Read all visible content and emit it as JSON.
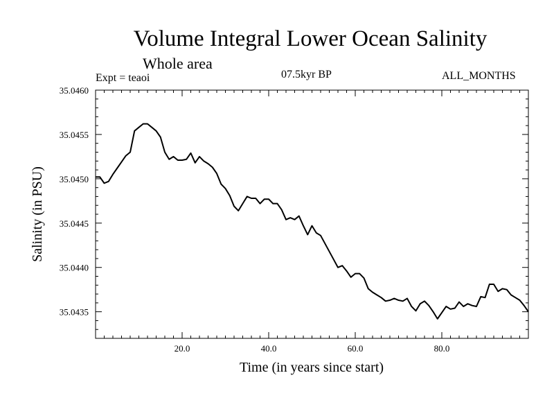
{
  "header": {
    "title": "Volume Integral Lower Ocean Salinity",
    "subtitle": "Whole area",
    "experiment": "Expt = teaoi",
    "period": "07.5kyr BP",
    "months": "ALL_MONTHS"
  },
  "chart_data": {
    "type": "line",
    "title": "Volume Integral Lower Ocean Salinity",
    "xlabel": "Time (in years since start)",
    "ylabel": "Salinity (in PSU)",
    "xlim": [
      0,
      100
    ],
    "ylim": [
      35.0432,
      35.046
    ],
    "x_ticks": [
      20,
      40,
      60,
      80
    ],
    "x_tick_labels": [
      "20.0",
      "40.0",
      "60.0",
      "80.0"
    ],
    "y_ticks": [
      35.0435,
      35.044,
      35.0445,
      35.045,
      35.0455,
      35.046
    ],
    "y_tick_labels": [
      "35.0435",
      "35.0440",
      "35.0445",
      "35.0450",
      "35.0455",
      "35.0460"
    ],
    "grid": false,
    "series": [
      {
        "name": "Salinity",
        "x": [
          0,
          1,
          2,
          3,
          4,
          5,
          6,
          7,
          8,
          9,
          10,
          11,
          12,
          13,
          14,
          15,
          16,
          17,
          18,
          19,
          20,
          21,
          22,
          23,
          24,
          25,
          26,
          27,
          28,
          29,
          30,
          31,
          32,
          33,
          34,
          35,
          36,
          37,
          38,
          39,
          40,
          41,
          42,
          43,
          44,
          45,
          46,
          47,
          48,
          49,
          50,
          51,
          52,
          53,
          54,
          55,
          56,
          57,
          58,
          59,
          60,
          61,
          62,
          63,
          64,
          65,
          66,
          67,
          68,
          69,
          70,
          71,
          72,
          73,
          74,
          75,
          76,
          77,
          78,
          79,
          80,
          81,
          82,
          83,
          84,
          85,
          86,
          87,
          88,
          89,
          90,
          91,
          92,
          93,
          94,
          95,
          96,
          97,
          98,
          99,
          100
        ],
        "values": [
          35.04502,
          35.04502,
          35.04495,
          35.04497,
          35.04505,
          35.04512,
          35.04519,
          35.04526,
          35.0453,
          35.04554,
          35.04558,
          35.04562,
          35.04562,
          35.04558,
          35.04554,
          35.04547,
          35.0453,
          35.04522,
          35.04525,
          35.04521,
          35.04521,
          35.04522,
          35.04529,
          35.04518,
          35.04525,
          35.0452,
          35.04517,
          35.04513,
          35.04506,
          35.04494,
          35.04489,
          35.04481,
          35.04469,
          35.04464,
          35.04472,
          35.0448,
          35.04478,
          35.04478,
          35.04472,
          35.04477,
          35.04477,
          35.04472,
          35.04472,
          35.04465,
          35.04454,
          35.04456,
          35.04454,
          35.04458,
          35.04447,
          35.04437,
          35.04447,
          35.04439,
          35.04436,
          35.04427,
          35.04418,
          35.04409,
          35.044,
          35.04402,
          35.04396,
          35.04389,
          35.04393,
          35.04393,
          35.04388,
          35.04376,
          35.04372,
          35.04369,
          35.04366,
          35.04362,
          35.04363,
          35.04365,
          35.04363,
          35.04362,
          35.04365,
          35.04356,
          35.04351,
          35.04359,
          35.04362,
          35.04357,
          35.0435,
          35.04342,
          35.04349,
          35.04356,
          35.04353,
          35.04354,
          35.04361,
          35.04356,
          35.04359,
          35.04357,
          35.04356,
          35.04367,
          35.04366,
          35.04381,
          35.04381,
          35.04373,
          35.04376,
          35.04375,
          35.04369,
          35.04366,
          35.04363,
          35.04357,
          35.0435
        ]
      }
    ]
  }
}
